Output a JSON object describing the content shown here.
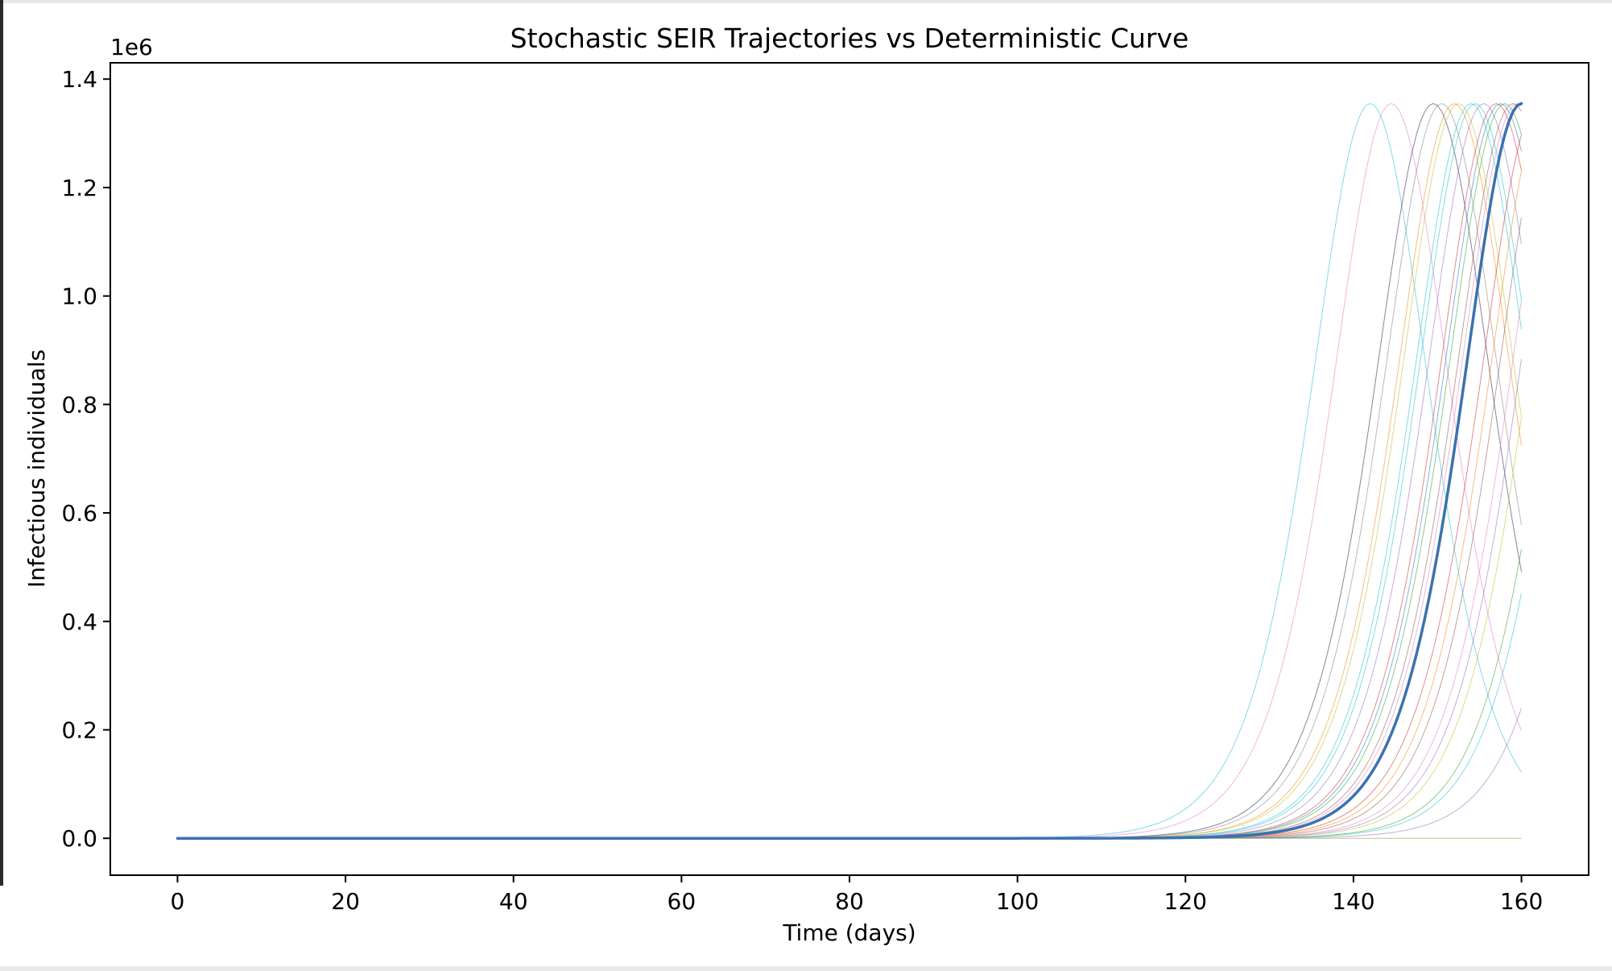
{
  "chart_data": {
    "type": "line",
    "title": "Stochastic SEIR Trajectories vs Deterministic Curve",
    "xlabel": "Time (days)",
    "ylabel": "Infectious individuals",
    "y_offset_label": "1e6",
    "xlim": [
      -8,
      168
    ],
    "ylim": [
      -0.068,
      1.43
    ],
    "y_scale_factor": 1000000,
    "xticks": [
      0,
      20,
      40,
      60,
      80,
      100,
      120,
      140,
      160
    ],
    "xtick_labels": [
      "0",
      "20",
      "40",
      "60",
      "80",
      "100",
      "120",
      "140",
      "160"
    ],
    "yticks": [
      0.0,
      0.2,
      0.4,
      0.6,
      0.8,
      1.0,
      1.2,
      1.4
    ],
    "ytick_labels": [
      "0.0",
      "0.2",
      "0.4",
      "0.6",
      "0.8",
      "1.0",
      "1.2",
      "1.4"
    ],
    "grid": false,
    "legend": "none",
    "deterministic": {
      "color": "#3a72b0",
      "width": 3.5,
      "peak_day": 160,
      "peak_value": 1.355,
      "half_width": 9.5
    },
    "stochastic_style": {
      "width": 1,
      "opacity": 0.55
    },
    "stochastic_series": [
      {
        "color": "#17becf",
        "peak_day": 142,
        "peak_value": 1.355,
        "half_width": 9.6
      },
      {
        "color": "#e377c2",
        "peak_day": 144.5,
        "peak_value": 1.355,
        "half_width": 9.6
      },
      {
        "color": "#1f1f4f",
        "peak_day": 149.5,
        "peak_value": 1.355,
        "half_width": 9.6
      },
      {
        "color": "#7f7f7f",
        "peak_day": 150.5,
        "peak_value": 1.355,
        "half_width": 9.6
      },
      {
        "color": "#ff7f0e",
        "peak_day": 152,
        "peak_value": 1.355,
        "half_width": 9.6
      },
      {
        "color": "#bcbd22",
        "peak_day": 152.5,
        "peak_value": 1.355,
        "half_width": 9.6
      },
      {
        "color": "#17becf",
        "peak_day": 154,
        "peak_value": 1.355,
        "half_width": 9.6
      },
      {
        "color": "#17becf",
        "peak_day": 154.5,
        "peak_value": 1.355,
        "half_width": 9.6
      },
      {
        "color": "#9467bd",
        "peak_day": 155.5,
        "peak_value": 1.355,
        "half_width": 9.6
      },
      {
        "color": "#d62728",
        "peak_day": 157,
        "peak_value": 1.355,
        "half_width": 9.6
      },
      {
        "color": "#1f77b4",
        "peak_day": 157.5,
        "peak_value": 1.355,
        "half_width": 9.6
      },
      {
        "color": "#2ca02c",
        "peak_day": 158,
        "peak_value": 1.355,
        "half_width": 9.6
      },
      {
        "color": "#8c564b",
        "peak_day": 159,
        "peak_value": 1.355,
        "half_width": 9.6
      },
      {
        "color": "#e377c2",
        "peak_day": 159.5,
        "peak_value": 1.355,
        "half_width": 9.6
      },
      {
        "color": "#d62728",
        "peak_day": 162,
        "peak_value": 1.355,
        "half_width": 9.6
      },
      {
        "color": "#ff7f0e",
        "peak_day": 163,
        "peak_value": 1.355,
        "half_width": 9.6
      },
      {
        "color": "#8c564b",
        "peak_day": 164,
        "peak_value": 1.355,
        "half_width": 9.6
      },
      {
        "color": "#e377c2",
        "peak_day": 165.5,
        "peak_value": 1.355,
        "half_width": 9.6
      },
      {
        "color": "#9467bd",
        "peak_day": 166.5,
        "peak_value": 1.355,
        "half_width": 9.6
      },
      {
        "color": "#bcbd22",
        "peak_day": 167.5,
        "peak_value": 1.355,
        "half_width": 9.6
      },
      {
        "color": "#2ca02c",
        "peak_day": 170,
        "peak_value": 1.355,
        "half_width": 9.6
      },
      {
        "color": "#17becf",
        "peak_day": 171,
        "peak_value": 1.355,
        "half_width": 9.6
      },
      {
        "color": "#9467bd",
        "peak_day": 174.5,
        "peak_value": 1.355,
        "half_width": 9.6
      },
      {
        "color": "#8c8c3c",
        "peak_day": null,
        "peak_value": 0.0,
        "half_width": 9.6
      }
    ]
  }
}
